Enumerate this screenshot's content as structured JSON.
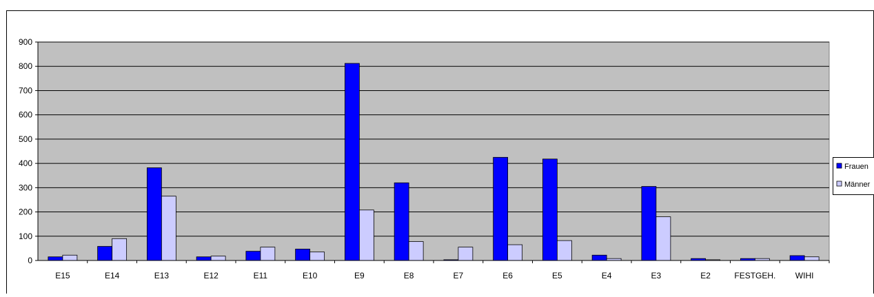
{
  "chart_data": {
    "type": "bar",
    "title": "",
    "xlabel": "",
    "ylabel": "",
    "ylim": [
      0,
      900
    ],
    "yticks": [
      0,
      100,
      200,
      300,
      400,
      500,
      600,
      700,
      800,
      900
    ],
    "grid": true,
    "legend_position": "right",
    "plot_background": "#c0c0c0",
    "categories": [
      "E15",
      "E14",
      "E13",
      "E12",
      "E11",
      "E10",
      "E9",
      "E8",
      "E7",
      "E6",
      "E5",
      "E4",
      "E3",
      "E2",
      "FESTGEH.",
      "WIHI"
    ],
    "series": [
      {
        "name": "Frauen",
        "color": "#0000ff",
        "values": [
          15,
          58,
          382,
          15,
          38,
          47,
          812,
          320,
          3,
          425,
          418,
          22,
          305,
          8,
          8,
          20
        ]
      },
      {
        "name": "Männer",
        "color": "#ccccff",
        "values": [
          22,
          90,
          265,
          18,
          55,
          35,
          208,
          78,
          55,
          65,
          82,
          8,
          180,
          3,
          8,
          15
        ]
      }
    ]
  }
}
